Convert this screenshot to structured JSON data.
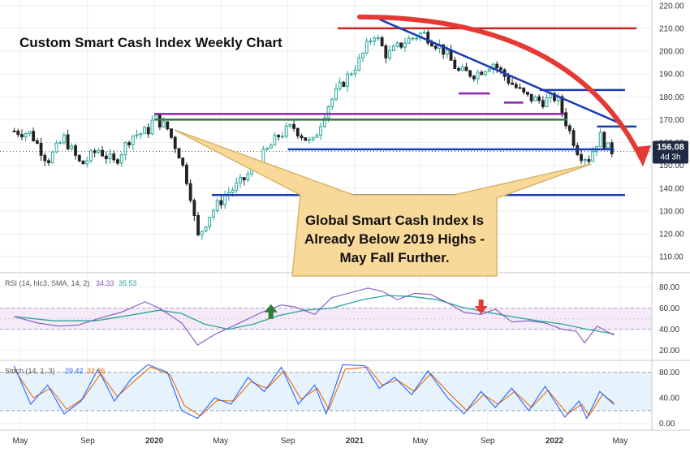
{
  "chart_data": [
    {
      "type": "candlestick",
      "title": "Custom Smart Cash Index Weekly Chart",
      "x_tick_labels": [
        "May",
        "Sep",
        "2020",
        "May",
        "Sep",
        "2021",
        "May",
        "Sep",
        "2022",
        "May"
      ],
      "y_ticks": [
        110,
        120,
        130,
        140,
        150,
        160,
        170,
        180,
        190,
        200,
        210,
        220
      ],
      "y_tick_labels": [
        "110.00",
        "120.00",
        "130.00",
        "140.00",
        "150.00",
        "160.00",
        "170.00",
        "180.00",
        "190.00",
        "200.00",
        "210.00",
        "220.00"
      ],
      "ylim": [
        104,
        221
      ],
      "last_price_label": "156.08",
      "last_price": 156.08,
      "countdown_label": "4d 3h",
      "close_path": [
        [
          "2019-04-20",
          165
        ],
        [
          "2019-05-20",
          164
        ],
        [
          "2019-06-20",
          152
        ],
        [
          "2019-07-20",
          162
        ],
        [
          "2019-08-20",
          150
        ],
        [
          "2019-09-20",
          157
        ],
        [
          "2019-10-20",
          151
        ],
        [
          "2019-11-20",
          163
        ],
        [
          "2019-12-20",
          165
        ],
        [
          "2020-01-01",
          171
        ],
        [
          "2020-01-25",
          166
        ],
        [
          "2020-02-15",
          155
        ],
        [
          "2020-03-05",
          140
        ],
        [
          "2020-03-20",
          118
        ],
        [
          "2020-04-10",
          128
        ],
        [
          "2020-05-10",
          137
        ],
        [
          "2020-06-10",
          143
        ],
        [
          "2020-07-10",
          152
        ],
        [
          "2020-08-15",
          163
        ],
        [
          "2020-09-10",
          167
        ],
        [
          "2020-10-15",
          159
        ],
        [
          "2020-11-10",
          175
        ],
        [
          "2020-12-10",
          186
        ],
        [
          "2021-01-10",
          196
        ],
        [
          "2021-02-05",
          208
        ],
        [
          "2021-03-01",
          198
        ],
        [
          "2021-04-01",
          204
        ],
        [
          "2021-05-05",
          208
        ],
        [
          "2021-06-10",
          201
        ],
        [
          "2021-07-10",
          191
        ],
        [
          "2021-08-10",
          190
        ],
        [
          "2021-09-10",
          195
        ],
        [
          "2021-10-10",
          187
        ],
        [
          "2021-11-10",
          180
        ],
        [
          "2021-12-10",
          178
        ],
        [
          "2022-01-05",
          180
        ],
        [
          "2022-01-25",
          167
        ],
        [
          "2022-02-15",
          155
        ],
        [
          "2022-03-05",
          153
        ],
        [
          "2022-03-25",
          163
        ],
        [
          "2022-04-10",
          157
        ],
        [
          "2022-04-20",
          156.08
        ]
      ],
      "horizontal_lines": [
        {
          "y": 210,
          "from": "2020-12-01",
          "to": "2022-05-31",
          "color": "#cc2222"
        },
        {
          "y": 172.5,
          "from": "2020-01-01",
          "to": "2022-01-20",
          "color": "#8e24aa"
        },
        {
          "y": 170,
          "from": "2020-01-01",
          "to": "2022-01-25",
          "color": "#2e7d32"
        },
        {
          "y": 157,
          "from": "2020-09-01",
          "to": "2022-04-20",
          "color": "#1a3ab5"
        },
        {
          "y": 137,
          "from": "2020-04-15",
          "to": "2022-05-10",
          "color": "#1a3ab5"
        },
        {
          "y": 167,
          "from": "2022-03-20",
          "to": "2022-05-31",
          "color": "#1a3ab5"
        },
        {
          "y": 183,
          "from": "2021-12-05",
          "to": "2022-05-10",
          "color": "#1a3ab5"
        },
        {
          "y": 181.5,
          "from": "2021-07-10",
          "to": "2021-09-05",
          "color": "#8e24aa"
        },
        {
          "y": 177.5,
          "from": "2021-10-01",
          "to": "2021-11-05",
          "color": "#8e24aa"
        }
      ],
      "trend_line": {
        "from": [
          "2021-02-15",
          214
        ],
        "to": [
          "2022-05-05",
          168
        ],
        "color": "#1a3ab5"
      },
      "projection_arrow": {
        "color": "#e53935"
      },
      "callout": {
        "lines": [
          "Global Smart Cash Index Is",
          "Already Below 2019 Highs -",
          "May Fall Further."
        ],
        "fill": "#f9d99a"
      }
    },
    {
      "type": "line",
      "indicator_label": "RSI (14, hlc3, SMA, 14, 2)",
      "series": [
        {
          "name": "34.33",
          "color": "#7e57c2",
          "values": [
            [
              "2019-04-20",
              52
            ],
            [
              "2019-06-01",
              46
            ],
            [
              "2019-07-10",
              43
            ],
            [
              "2019-08-15",
              44
            ],
            [
              "2019-09-20",
              50
            ],
            [
              "2019-11-01",
              56
            ],
            [
              "2019-12-15",
              66
            ],
            [
              "2020-01-10",
              60
            ],
            [
              "2020-02-20",
              46
            ],
            [
              "2020-03-20",
              25
            ],
            [
              "2020-04-20",
              35
            ],
            [
              "2020-06-01",
              45
            ],
            [
              "2020-07-15",
              56
            ],
            [
              "2020-08-20",
              63
            ],
            [
              "2020-09-15",
              61
            ],
            [
              "2020-10-20",
              54
            ],
            [
              "2020-11-20",
              70
            ],
            [
              "2020-12-20",
              74
            ],
            [
              "2021-01-25",
              79
            ],
            [
              "2021-02-20",
              76
            ],
            [
              "2021-03-20",
              68
            ],
            [
              "2021-04-20",
              74
            ],
            [
              "2021-05-20",
              73
            ],
            [
              "2021-06-20",
              65
            ],
            [
              "2021-07-20",
              56
            ],
            [
              "2021-08-20",
              54
            ],
            [
              "2021-09-15",
              59
            ],
            [
              "2021-10-15",
              47
            ],
            [
              "2021-11-15",
              48
            ],
            [
              "2021-12-15",
              46
            ],
            [
              "2022-01-15",
              40
            ],
            [
              "2022-02-10",
              38
            ],
            [
              "2022-02-25",
              27
            ],
            [
              "2022-03-20",
              43
            ],
            [
              "2022-04-20",
              34.33
            ]
          ]
        },
        {
          "name": "35.53",
          "color": "#26a69a",
          "values": [
            [
              "2019-04-20",
              52
            ],
            [
              "2019-07-01",
              48
            ],
            [
              "2019-09-15",
              48
            ],
            [
              "2019-11-15",
              53
            ],
            [
              "2020-01-10",
              58
            ],
            [
              "2020-02-20",
              55
            ],
            [
              "2020-04-01",
              45
            ],
            [
              "2020-05-15",
              40
            ],
            [
              "2020-07-01",
              45
            ],
            [
              "2020-08-15",
              53
            ],
            [
              "2020-10-01",
              58
            ],
            [
              "2020-11-20",
              60
            ],
            [
              "2021-01-15",
              68
            ],
            [
              "2021-03-01",
              72
            ],
            [
              "2021-04-15",
              71
            ],
            [
              "2021-06-01",
              68
            ],
            [
              "2021-07-15",
              61
            ],
            [
              "2021-09-01",
              56
            ],
            [
              "2021-10-15",
              52
            ],
            [
              "2021-12-01",
              48
            ],
            [
              "2022-01-15",
              45
            ],
            [
              "2022-03-01",
              40
            ],
            [
              "2022-04-20",
              35.53
            ]
          ]
        }
      ],
      "ylim": [
        12,
        92
      ],
      "y_ticks": [
        20,
        40,
        60,
        80
      ],
      "y_tick_labels": [
        "20.00",
        "40.00",
        "60.00",
        "80.00"
      ],
      "bands": [
        40,
        60
      ],
      "markers": [
        {
          "date": "2020-08-01",
          "direction": "up",
          "color": "#2e7d32"
        },
        {
          "date": "2021-08-20",
          "direction": "down",
          "color": "#e53935"
        }
      ]
    },
    {
      "type": "line",
      "indicator_label": "Stoch (14, 1, 3)",
      "series": [
        {
          "name": "29.42",
          "color": "#2962ff",
          "values": [
            [
              "2019-04-20",
              90
            ],
            [
              "2019-05-20",
              30
            ],
            [
              "2019-06-20",
              60
            ],
            [
              "2019-07-20",
              15
            ],
            [
              "2019-08-20",
              35
            ],
            [
              "2019-09-20",
              85
            ],
            [
              "2019-10-20",
              35
            ],
            [
              "2019-11-20",
              70
            ],
            [
              "2019-12-20",
              92
            ],
            [
              "2020-01-25",
              80
            ],
            [
              "2020-02-20",
              20
            ],
            [
              "2020-03-20",
              8
            ],
            [
              "2020-04-20",
              40
            ],
            [
              "2020-05-20",
              30
            ],
            [
              "2020-06-20",
              72
            ],
            [
              "2020-07-20",
              50
            ],
            [
              "2020-08-20",
              88
            ],
            [
              "2020-09-20",
              30
            ],
            [
              "2020-10-20",
              60
            ],
            [
              "2020-11-10",
              15
            ],
            [
              "2020-12-10",
              92
            ],
            [
              "2021-01-20",
              90
            ],
            [
              "2021-02-15",
              55
            ],
            [
              "2021-03-15",
              72
            ],
            [
              "2021-04-15",
              45
            ],
            [
              "2021-05-15",
              82
            ],
            [
              "2021-06-20",
              40
            ],
            [
              "2021-07-20",
              15
            ],
            [
              "2021-08-20",
              50
            ],
            [
              "2021-09-15",
              25
            ],
            [
              "2021-10-15",
              55
            ],
            [
              "2021-11-15",
              20
            ],
            [
              "2021-12-15",
              58
            ],
            [
              "2022-01-20",
              10
            ],
            [
              "2022-02-15",
              35
            ],
            [
              "2022-03-01",
              8
            ],
            [
              "2022-03-25",
              50
            ],
            [
              "2022-04-20",
              29.42
            ]
          ]
        },
        {
          "name": "32.36",
          "color": "#ef6c00",
          "values": [
            [
              "2019-04-20",
              85
            ],
            [
              "2019-05-25",
              40
            ],
            [
              "2019-06-25",
              55
            ],
            [
              "2019-07-25",
              22
            ],
            [
              "2019-08-25",
              40
            ],
            [
              "2019-09-25",
              78
            ],
            [
              "2019-10-25",
              42
            ],
            [
              "2019-11-25",
              66
            ],
            [
              "2019-12-25",
              88
            ],
            [
              "2020-01-30",
              76
            ],
            [
              "2020-02-25",
              28
            ],
            [
              "2020-03-25",
              12
            ],
            [
              "2020-04-25",
              36
            ],
            [
              "2020-05-25",
              35
            ],
            [
              "2020-06-25",
              65
            ],
            [
              "2020-07-25",
              55
            ],
            [
              "2020-08-25",
              82
            ],
            [
              "2020-09-25",
              38
            ],
            [
              "2020-10-25",
              55
            ],
            [
              "2020-11-15",
              22
            ],
            [
              "2020-12-15",
              85
            ],
            [
              "2021-01-25",
              88
            ],
            [
              "2021-02-20",
              60
            ],
            [
              "2021-03-20",
              68
            ],
            [
              "2021-04-20",
              50
            ],
            [
              "2021-05-20",
              78
            ],
            [
              "2021-06-25",
              45
            ],
            [
              "2021-07-25",
              20
            ],
            [
              "2021-08-25",
              45
            ],
            [
              "2021-09-20",
              30
            ],
            [
              "2021-10-20",
              50
            ],
            [
              "2021-11-20",
              25
            ],
            [
              "2021-12-20",
              52
            ],
            [
              "2022-01-25",
              15
            ],
            [
              "2022-02-20",
              30
            ],
            [
              "2022-03-05",
              12
            ],
            [
              "2022-03-30",
              45
            ],
            [
              "2022-04-20",
              32.36
            ]
          ]
        }
      ],
      "ylim": [
        -8,
        96
      ],
      "y_ticks": [
        0,
        40,
        80
      ],
      "y_tick_labels": [
        "0.00",
        "40.00",
        "80.00"
      ],
      "bands": [
        20,
        80
      ]
    }
  ],
  "colors": {
    "up": "#26a69a",
    "down": "#222222",
    "grid": "#eeeeee",
    "axis_text": "#333333",
    "price_tag": "#1f2a44"
  }
}
